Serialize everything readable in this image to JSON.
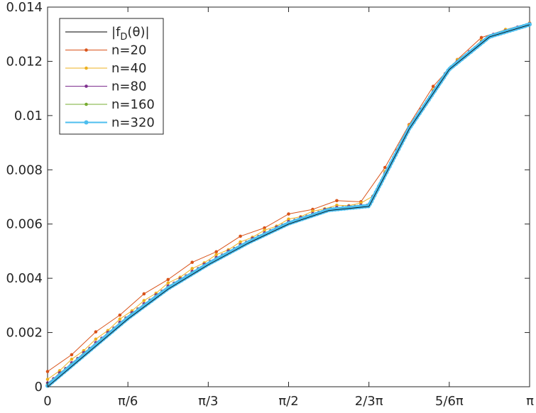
{
  "chart_data": {
    "type": "line",
    "title": "",
    "xlabel": "",
    "ylabel": "",
    "xlim": [
      0,
      3.14159265
    ],
    "ylim": [
      0,
      0.014
    ],
    "x_ticks": [
      {
        "value": 0,
        "label": "0"
      },
      {
        "value": 0.5235988,
        "label": "π/6"
      },
      {
        "value": 1.0471976,
        "label": "π/3"
      },
      {
        "value": 1.5707963,
        "label": "π/2"
      },
      {
        "value": 2.0943951,
        "label": "2/3π"
      },
      {
        "value": 2.6179939,
        "label": "5/6π"
      },
      {
        "value": 3.1415927,
        "label": "π"
      }
    ],
    "y_ticks": [
      {
        "value": 0,
        "label": "0"
      },
      {
        "value": 0.002,
        "label": "0.002"
      },
      {
        "value": 0.004,
        "label": "0.004"
      },
      {
        "value": 0.006,
        "label": "0.006"
      },
      {
        "value": 0.008,
        "label": "0.008"
      },
      {
        "value": 0.01,
        "label": "0.01"
      },
      {
        "value": 0.012,
        "label": "0.012"
      },
      {
        "value": 0.014,
        "label": "0.014"
      }
    ],
    "grid": false,
    "legend_position": "top-left",
    "legend": [
      "|f_D(θ)|",
      "n=20",
      "n=40",
      "n=80",
      "n=160",
      "n=320"
    ],
    "reference": {
      "name": "|f_D(θ)|",
      "color": "#000000",
      "x": [
        0,
        0.2618,
        0.5236,
        0.7854,
        1.0472,
        1.309,
        1.5708,
        1.8326,
        2.0944,
        2.3562,
        2.618,
        2.8798,
        3.1416
      ],
      "y": [
        0,
        0.00125,
        0.0025,
        0.0036,
        0.0045,
        0.0053,
        0.006,
        0.0065,
        0.00665,
        0.0095,
        0.0117,
        0.0129,
        0.01335
      ]
    },
    "series": [
      {
        "name": "n=20",
        "color": "#D95319",
        "n": 20,
        "offset": 0.00045
      },
      {
        "name": "n=40",
        "color": "#EDB120",
        "n": 40,
        "offset": 0.00022
      },
      {
        "name": "n=80",
        "color": "#7E2F8E",
        "n": 80,
        "offset": 0.00011
      },
      {
        "name": "n=160",
        "color": "#77AC30",
        "n": 160,
        "offset": 6e-05
      },
      {
        "name": "n=320",
        "color": "#4DBEEE",
        "n": 320,
        "offset": 3e-05
      }
    ]
  }
}
